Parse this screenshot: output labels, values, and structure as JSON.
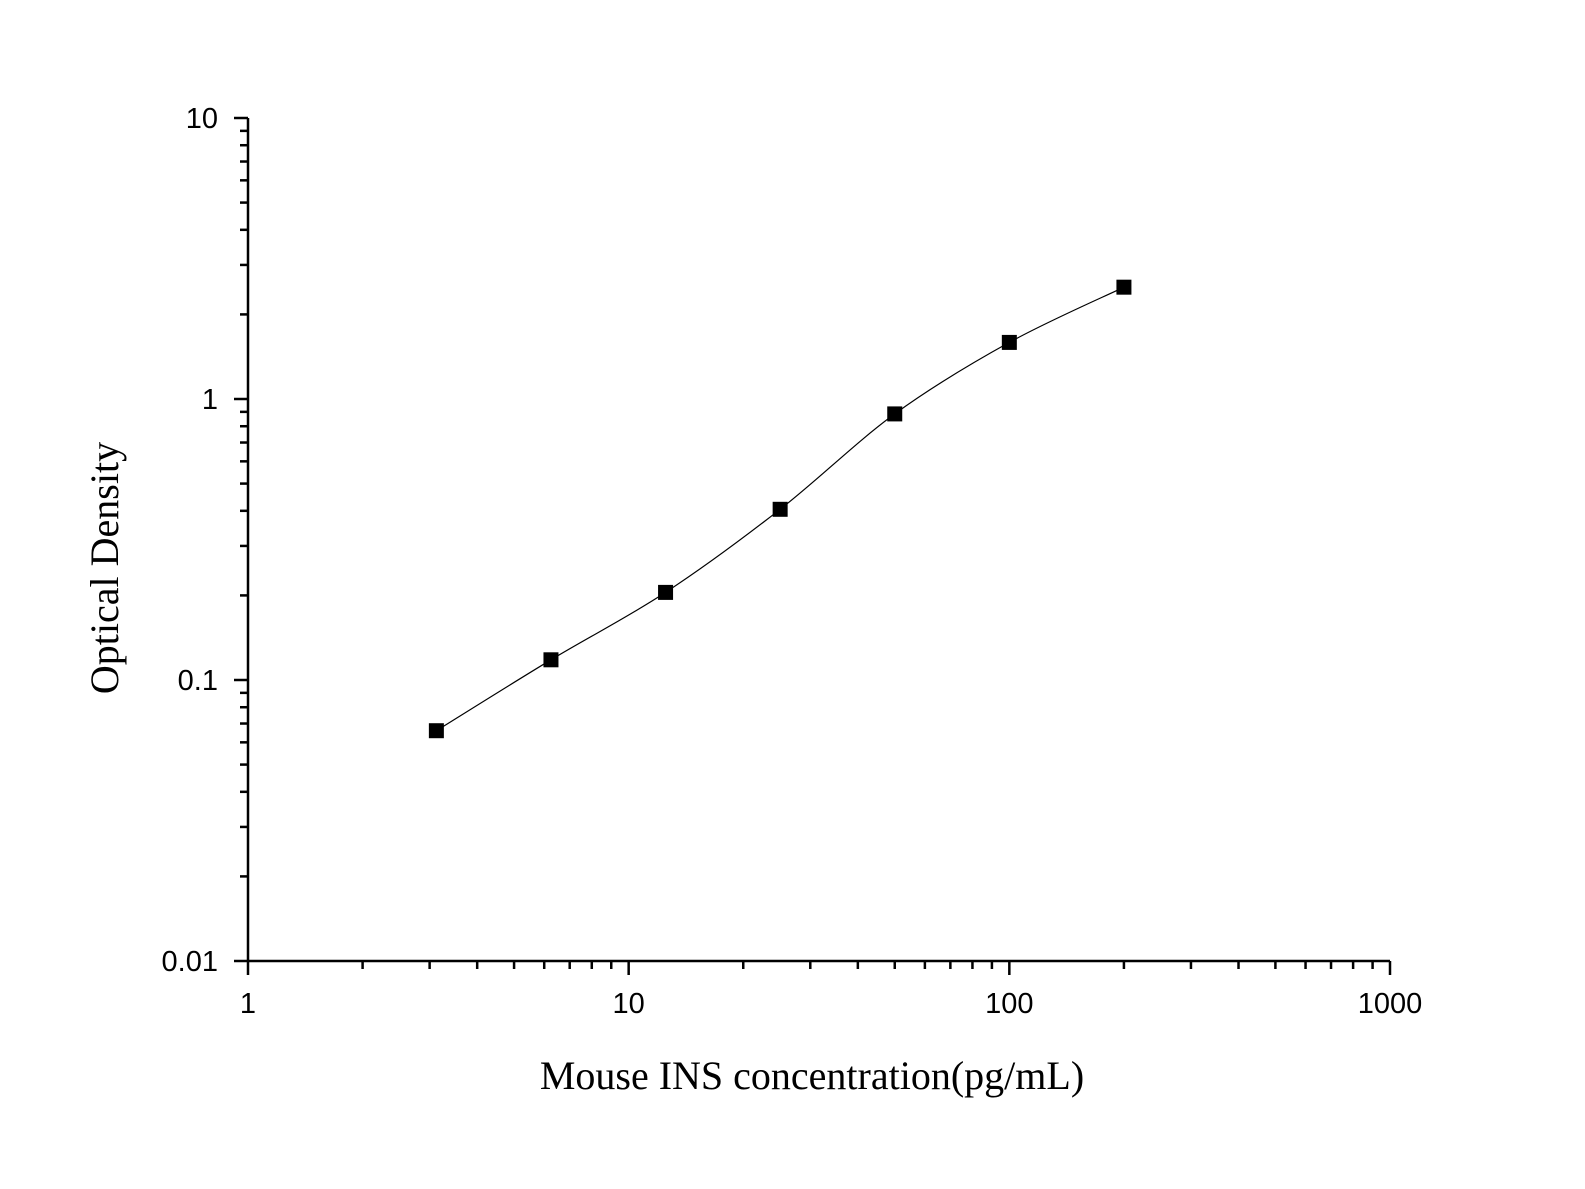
{
  "chart_data": {
    "type": "scatter",
    "title": "",
    "xlabel": "Mouse INS concentration(pg/mL)",
    "ylabel": "Optical Density",
    "x_scale": "log",
    "y_scale": "log",
    "xlim": [
      1,
      1000
    ],
    "ylim": [
      0.01,
      10
    ],
    "x_ticks": [
      "1",
      "10",
      "100",
      "1000"
    ],
    "y_ticks": [
      "0.01",
      "0.1",
      "1",
      "10"
    ],
    "grid": false,
    "legend": "none",
    "series": [
      {
        "x": [
          3.125,
          6.25,
          12.5,
          25,
          50,
          100,
          200
        ],
        "y": [
          0.066,
          0.118,
          0.205,
          0.405,
          0.885,
          1.59,
          2.5
        ],
        "marker": "square",
        "color": "#000000",
        "fit_curve": "smooth"
      }
    ]
  }
}
